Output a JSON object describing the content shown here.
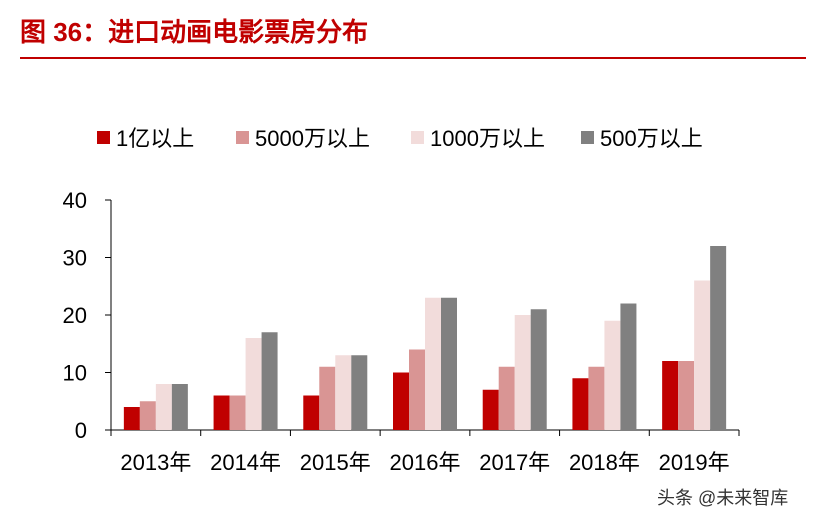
{
  "title": "图 36：进口动画电影票房分布",
  "watermark": "头条 @未来智库",
  "colors": {
    "title": "#c00000",
    "series": [
      "#c00000",
      "#d99594",
      "#f2dcdb",
      "#808080"
    ]
  },
  "chart_data": {
    "type": "bar",
    "title": "",
    "xlabel": "",
    "ylabel": "",
    "categories": [
      "2013年",
      "2014年",
      "2015年",
      "2016年",
      "2017年",
      "2018年",
      "2019年"
    ],
    "series": [
      {
        "name": "1亿以上",
        "values": [
          4,
          6,
          6,
          10,
          7,
          9,
          12
        ]
      },
      {
        "name": "5000万以上",
        "values": [
          5,
          6,
          11,
          14,
          11,
          11,
          12
        ]
      },
      {
        "name": "1000万以上",
        "values": [
          8,
          16,
          13,
          23,
          20,
          19,
          26
        ]
      },
      {
        "name": "500万以上",
        "values": [
          8,
          17,
          13,
          23,
          21,
          22,
          32
        ]
      }
    ],
    "ylim": [
      0,
      40
    ],
    "yticks": [
      "0",
      "10",
      "20",
      "30",
      "40"
    ],
    "grid": false,
    "legend": "top"
  }
}
